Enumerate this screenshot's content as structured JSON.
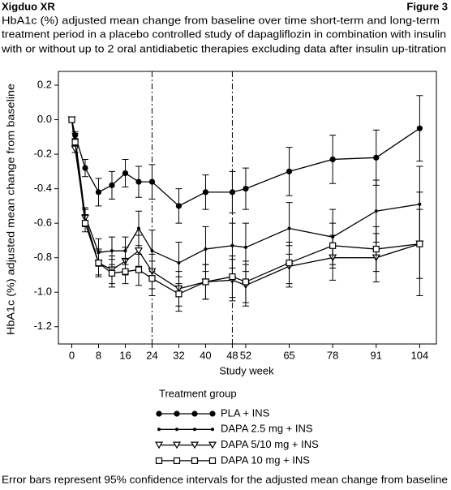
{
  "chart_data": {
    "type": "line",
    "header": "Xigduo XR",
    "figure_label": "Figure 3",
    "title": [
      "HbA1c (%) adjusted mean change from baseline over time short-term and long-term",
      "treatment period in a placebo controlled study of dapagliflozin in combination with insulin",
      "with or without up to 2 oral antidiabetic therapies excluding data after insulin up-titration"
    ],
    "x_label": "Study week",
    "y_label": "HbA1c (%) adjusted mean change from baseline",
    "legend_title": "Treatment group",
    "footnote": "Error bars represent 95% confidence intervals for the adjusted mean change from baseline",
    "x": [
      0,
      1,
      4,
      8,
      12,
      16,
      20,
      24,
      32,
      40,
      48,
      52,
      65,
      78,
      91,
      104
    ],
    "xlim": [
      -4,
      109
    ],
    "xticks": [
      0,
      8,
      16,
      24,
      32,
      40,
      48,
      52,
      65,
      78,
      91,
      104
    ],
    "ylim": [
      -1.3,
      0.28
    ],
    "yticks": [
      0.2,
      {
        "value": 0,
        "label": "0.0"
      },
      -0.2,
      -0.4,
      -0.6,
      -0.8,
      {
        "value": -1,
        "label": "-1.0"
      },
      -1.2
    ],
    "reference_lines": [
      24,
      48
    ],
    "series": [
      {
        "name": "PLA + INS",
        "color": "#000000",
        "marker": "circle-large",
        "values": [
          0,
          -0.09,
          -0.28,
          -0.42,
          -0.38,
          -0.31,
          -0.36,
          -0.36,
          -0.5,
          -0.42,
          -0.42,
          -0.4,
          -0.3,
          -0.23,
          -0.22,
          -0.05
        ],
        "errors": [
          0,
          0.02,
          0.05,
          0.08,
          0.08,
          0.08,
          0.09,
          0.1,
          0.1,
          0.1,
          0.12,
          0.12,
          0.14,
          0.14,
          0.16,
          0.19
        ]
      },
      {
        "name": "DAPA 2.5 mg + INS",
        "color": "#000000",
        "marker": "dot",
        "values": [
          0,
          -0.1,
          -0.56,
          -0.77,
          -0.76,
          -0.76,
          -0.63,
          -0.76,
          -0.83,
          -0.75,
          -0.73,
          -0.74,
          -0.63,
          -0.68,
          -0.53,
          -0.49
        ],
        "errors": [
          0,
          0.02,
          0.05,
          0.08,
          0.08,
          0.08,
          0.1,
          0.12,
          0.12,
          0.13,
          0.13,
          0.14,
          0.15,
          0.16,
          0.18,
          0.22
        ]
      },
      {
        "name": "DAPA 5/10 mg + INS",
        "color": "#000000",
        "marker": "triangle-down",
        "values": [
          0,
          -0.17,
          -0.57,
          -0.83,
          -0.87,
          -0.82,
          -0.76,
          -0.88,
          -0.98,
          -0.94,
          -0.93,
          -0.96,
          -0.85,
          -0.8,
          -0.8,
          -0.72
        ],
        "errors": [
          0,
          0.02,
          0.05,
          0.08,
          0.08,
          0.08,
          0.09,
          0.1,
          0.1,
          0.1,
          0.12,
          0.12,
          0.12,
          0.13,
          0.14,
          0.2
        ]
      },
      {
        "name": "DAPA 10 mg + INS",
        "color": "#000000",
        "marker": "square",
        "values": [
          0,
          -0.13,
          -0.6,
          -0.83,
          -0.89,
          -0.88,
          -0.87,
          -0.92,
          -1.01,
          -0.94,
          -0.91,
          -0.94,
          -0.83,
          -0.73,
          -0.75,
          -0.72
        ],
        "errors": [
          0,
          0.02,
          0.05,
          0.07,
          0.08,
          0.07,
          0.09,
          0.1,
          0.1,
          0.1,
          0.12,
          0.12,
          0.12,
          0.13,
          0.13,
          0.3
        ]
      }
    ]
  }
}
